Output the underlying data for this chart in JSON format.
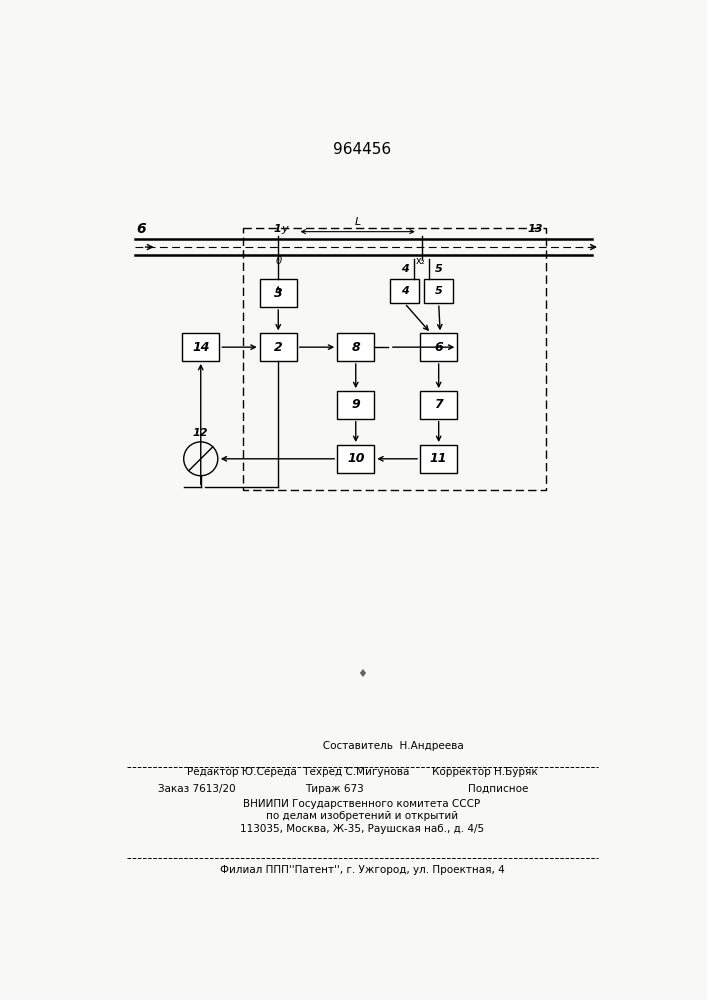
{
  "title": "964456",
  "bg_color": "#ffffff",
  "page_width": 7.07,
  "page_height": 10.0,
  "footer": {
    "line1": "                   Составитель  Н.Андреева",
    "line2": "Редактор Ю.Середа  Техред С.Мигунова       Корректор Н.Буряк",
    "line3a": "Заказ 7613/20",
    "line3b": "Тираж 673",
    "line3c": "Подписное",
    "line4": "ВНИИПИ Государственного комитета СССР",
    "line5": "по делам изобретений и открытий",
    "line6": "113035, Москва, Ж-35, Раушская наб., д. 4/5",
    "line7": "Филиал ППП''Патент'', г. Ужгород, ул. Проектная, 4"
  }
}
